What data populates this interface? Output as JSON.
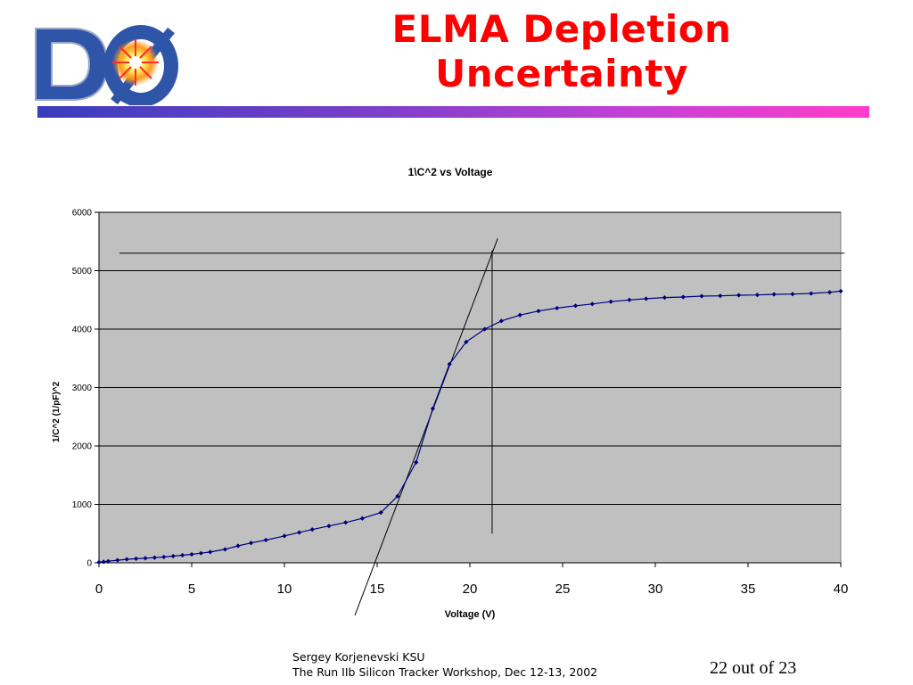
{
  "slide": {
    "title_line1": "ELMA Depletion",
    "title_line2": "Uncertainty",
    "logo_text": "DØ",
    "footer_line1": "Sergey Korjenevski KSU",
    "footer_line2": "The Run IIb Silicon Tracker Workshop,  Dec 12-13, 2002",
    "page": "22 out of 23",
    "colors": {
      "title": "#ff0000",
      "accent_start": "#3a3dbd",
      "accent_end": "#ff3dc8"
    }
  },
  "chart_data": {
    "type": "line",
    "title": "1\\C^2 vs Voltage",
    "xlabel": "Voltage (V)",
    "ylabel": "1/C^2 (1/pF)^2",
    "xlim": [
      0,
      40
    ],
    "ylim": [
      0,
      6000
    ],
    "xticks": [
      0,
      5,
      10,
      15,
      20,
      25,
      30,
      35,
      40
    ],
    "yticks": [
      0,
      1000,
      2000,
      3000,
      4000,
      5000,
      6000
    ],
    "grid": "horizontal",
    "plot_background": "#c0c0c0",
    "series_color": "#000080",
    "series": [
      {
        "x": [
          0,
          0.25,
          0.5,
          1,
          1.5,
          2,
          2.5,
          3,
          3.5,
          4,
          4.5,
          5,
          5.5,
          6,
          6.8,
          7.5,
          8.2,
          9,
          10,
          10.8,
          11.5,
          12.4,
          13.3,
          14.2,
          15.2,
          16.1,
          17.1,
          18,
          18.9,
          19.8,
          20.8,
          21.7,
          22.7,
          23.7,
          24.7,
          25.7,
          26.6,
          27.6,
          28.6,
          29.5,
          30.5,
          31.5,
          32.5,
          33.5,
          34.5,
          35.5,
          36.4,
          37.4,
          38.4,
          39.4,
          40
        ],
        "y": [
          10,
          18,
          28,
          45,
          60,
          70,
          78,
          88,
          100,
          115,
          130,
          145,
          165,
          185,
          230,
          290,
          340,
          390,
          460,
          520,
          570,
          630,
          690,
          760,
          860,
          1140,
          1720,
          2640,
          3400,
          3780,
          4000,
          4140,
          4240,
          4310,
          4360,
          4400,
          4430,
          4470,
          4500,
          4520,
          4540,
          4550,
          4565,
          4570,
          4580,
          4585,
          4595,
          4600,
          4610,
          4630,
          4650
        ]
      }
    ],
    "annotations": {
      "horizontal_line_y": 5300,
      "horizontal_line_x": [
        1.1,
        40.2
      ],
      "vertical_line_x": 21.2,
      "vertical_line_y": [
        500,
        5350
      ],
      "tangent_line": {
        "x": [
          13.8,
          21.5
        ],
        "y": [
          -900,
          5550
        ]
      }
    }
  }
}
